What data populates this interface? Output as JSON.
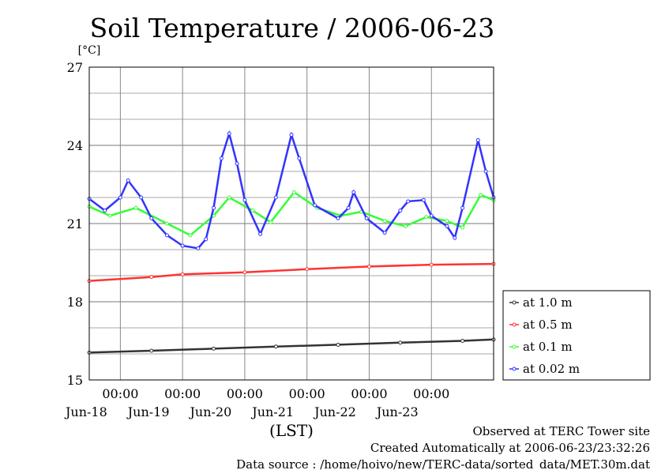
{
  "chart_data": {
    "type": "line",
    "title": "Soil Temperature / 2006-06-23",
    "ylabel": "[°C]",
    "xlabel": "(LST)",
    "ylim": [
      15,
      27
    ],
    "yticks": [
      15,
      18,
      21,
      24,
      27
    ],
    "xlim": [
      "2006-06-17T12:00",
      "2006-06-24T00:00"
    ],
    "xticks": [
      {
        "time": "2006-06-18T00:00",
        "label": "00:00",
        "date": "Jun-18"
      },
      {
        "time": "2006-06-19T00:00",
        "label": "00:00",
        "date": "Jun-19"
      },
      {
        "time": "2006-06-20T00:00",
        "label": "00:00",
        "date": "Jun-20"
      },
      {
        "time": "2006-06-21T00:00",
        "label": "00:00",
        "date": "Jun-21"
      },
      {
        "time": "2006-06-22T00:00",
        "label": "00:00",
        "date": "Jun-22"
      },
      {
        "time": "2006-06-23T00:00",
        "label": "00:00",
        "date": "Jun-23"
      }
    ],
    "grid": true,
    "legend_position": "right",
    "series": [
      {
        "name": "at 1.0 m",
        "color": "#333333",
        "points": [
          [
            "2006-06-17T12:00",
            16.05
          ],
          [
            "2006-06-18T12:00",
            16.12
          ],
          [
            "2006-06-19T12:00",
            16.2
          ],
          [
            "2006-06-20T12:00",
            16.28
          ],
          [
            "2006-06-21T12:00",
            16.35
          ],
          [
            "2006-06-22T12:00",
            16.43
          ],
          [
            "2006-06-23T12:00",
            16.5
          ],
          [
            "2006-06-24T00:00",
            16.55
          ]
        ]
      },
      {
        "name": "at 0.5 m",
        "color": "#ff3333",
        "points": [
          [
            "2006-06-17T12:00",
            18.8
          ],
          [
            "2006-06-18T12:00",
            18.95
          ],
          [
            "2006-06-19T00:00",
            19.05
          ],
          [
            "2006-06-20T00:00",
            19.13
          ],
          [
            "2006-06-21T00:00",
            19.25
          ],
          [
            "2006-06-22T00:00",
            19.35
          ],
          [
            "2006-06-23T00:00",
            19.42
          ],
          [
            "2006-06-24T00:00",
            19.45
          ]
        ]
      },
      {
        "name": "at 0.1 m",
        "color": "#33ff33",
        "points": [
          [
            "2006-06-17T12:00",
            21.65
          ],
          [
            "2006-06-17T20:00",
            21.3
          ],
          [
            "2006-06-18T06:00",
            21.6
          ],
          [
            "2006-06-18T18:00",
            21.0
          ],
          [
            "2006-06-19T03:00",
            20.55
          ],
          [
            "2006-06-19T12:00",
            21.3
          ],
          [
            "2006-06-19T18:00",
            22.0
          ],
          [
            "2006-06-20T03:00",
            21.5
          ],
          [
            "2006-06-20T10:00",
            21.05
          ],
          [
            "2006-06-20T19:00",
            22.2
          ],
          [
            "2006-06-21T04:00",
            21.6
          ],
          [
            "2006-06-21T13:00",
            21.3
          ],
          [
            "2006-06-21T21:00",
            21.45
          ],
          [
            "2006-06-22T06:00",
            21.1
          ],
          [
            "2006-06-22T14:00",
            20.9
          ],
          [
            "2006-06-22T22:00",
            21.25
          ],
          [
            "2006-06-23T06:00",
            21.1
          ],
          [
            "2006-06-23T12:00",
            20.85
          ],
          [
            "2006-06-23T19:00",
            22.1
          ],
          [
            "2006-06-24T00:00",
            21.9
          ]
        ]
      },
      {
        "name": "at 0.02 m",
        "color": "#3333ff",
        "points": [
          [
            "2006-06-17T12:00",
            21.95
          ],
          [
            "2006-06-17T18:00",
            21.5
          ],
          [
            "2006-06-18T00:00",
            22.0
          ],
          [
            "2006-06-18T03:00",
            22.65
          ],
          [
            "2006-06-18T08:00",
            22.0
          ],
          [
            "2006-06-18T12:00",
            21.2
          ],
          [
            "2006-06-18T18:00",
            20.55
          ],
          [
            "2006-06-19T00:00",
            20.15
          ],
          [
            "2006-06-19T06:00",
            20.05
          ],
          [
            "2006-06-19T09:00",
            20.4
          ],
          [
            "2006-06-19T12:00",
            21.6
          ],
          [
            "2006-06-19T15:00",
            23.5
          ],
          [
            "2006-06-19T18:00",
            24.45
          ],
          [
            "2006-06-19T21:00",
            23.3
          ],
          [
            "2006-06-20T00:00",
            21.9
          ],
          [
            "2006-06-20T06:00",
            20.6
          ],
          [
            "2006-06-20T12:00",
            22.0
          ],
          [
            "2006-06-20T18:00",
            24.4
          ],
          [
            "2006-06-20T21:00",
            23.5
          ],
          [
            "2006-06-21T03:00",
            21.7
          ],
          [
            "2006-06-21T12:00",
            21.2
          ],
          [
            "2006-06-21T16:00",
            21.6
          ],
          [
            "2006-06-21T18:00",
            22.2
          ],
          [
            "2006-06-21T23:00",
            21.2
          ],
          [
            "2006-06-22T06:00",
            20.65
          ],
          [
            "2006-06-22T12:00",
            21.5
          ],
          [
            "2006-06-22T15:00",
            21.85
          ],
          [
            "2006-06-22T21:00",
            21.9
          ],
          [
            "2006-06-23T00:00",
            21.3
          ],
          [
            "2006-06-23T06:00",
            20.9
          ],
          [
            "2006-06-23T09:00",
            20.45
          ],
          [
            "2006-06-23T12:00",
            21.6
          ],
          [
            "2006-06-23T18:00",
            24.2
          ],
          [
            "2006-06-23T21:00",
            23.0
          ],
          [
            "2006-06-24T00:00",
            22.0
          ]
        ]
      }
    ]
  },
  "footer": {
    "line1": "Observed at TERC Tower site",
    "line2": "Created Automatically at 2006-06-23/23:32:26",
    "line3": "Data source : /home/hoivo/new/TERC-data/sorted_data/MET.30m.dat"
  }
}
